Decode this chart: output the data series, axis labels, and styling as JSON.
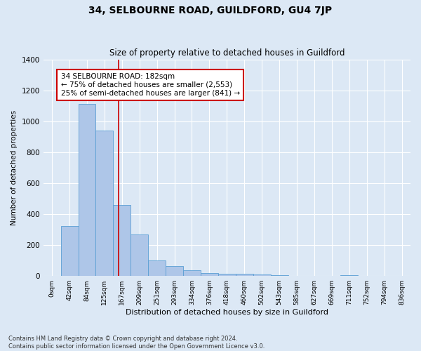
{
  "title": "34, SELBOURNE ROAD, GUILDFORD, GU4 7JP",
  "subtitle": "Size of property relative to detached houses in Guildford",
  "xlabel": "Distribution of detached houses by size in Guildford",
  "ylabel": "Number of detached properties",
  "footer_line1": "Contains HM Land Registry data © Crown copyright and database right 2024.",
  "footer_line2": "Contains public sector information licensed under the Open Government Licence v3.0.",
  "bar_labels": [
    "0sqm",
    "42sqm",
    "84sqm",
    "125sqm",
    "167sqm",
    "209sqm",
    "251sqm",
    "293sqm",
    "334sqm",
    "376sqm",
    "418sqm",
    "460sqm",
    "502sqm",
    "543sqm",
    "585sqm",
    "627sqm",
    "669sqm",
    "711sqm",
    "752sqm",
    "794sqm",
    "836sqm"
  ],
  "bar_values": [
    2,
    325,
    1110,
    940,
    460,
    270,
    100,
    65,
    35,
    20,
    15,
    15,
    10,
    5,
    0,
    0,
    0,
    5,
    0,
    0,
    0
  ],
  "bar_color": "#aec6e8",
  "bar_edge_color": "#5a9fd4",
  "ylim": [
    0,
    1400
  ],
  "yticks": [
    0,
    200,
    400,
    600,
    800,
    1000,
    1200,
    1400
  ],
  "property_label": "34 SELBOURNE ROAD: 182sqm",
  "annotation_line1": "← 75% of detached houses are smaller (2,553)",
  "annotation_line2": "25% of semi-detached houses are larger (841) →",
  "vline_color": "#cc0000",
  "vline_x": 3.82,
  "annotation_box_color": "#ffffff",
  "annotation_box_edge": "#cc0000",
  "background_color": "#dce8f5",
  "grid_color": "#ffffff",
  "title_fontsize": 10,
  "subtitle_fontsize": 8.5
}
